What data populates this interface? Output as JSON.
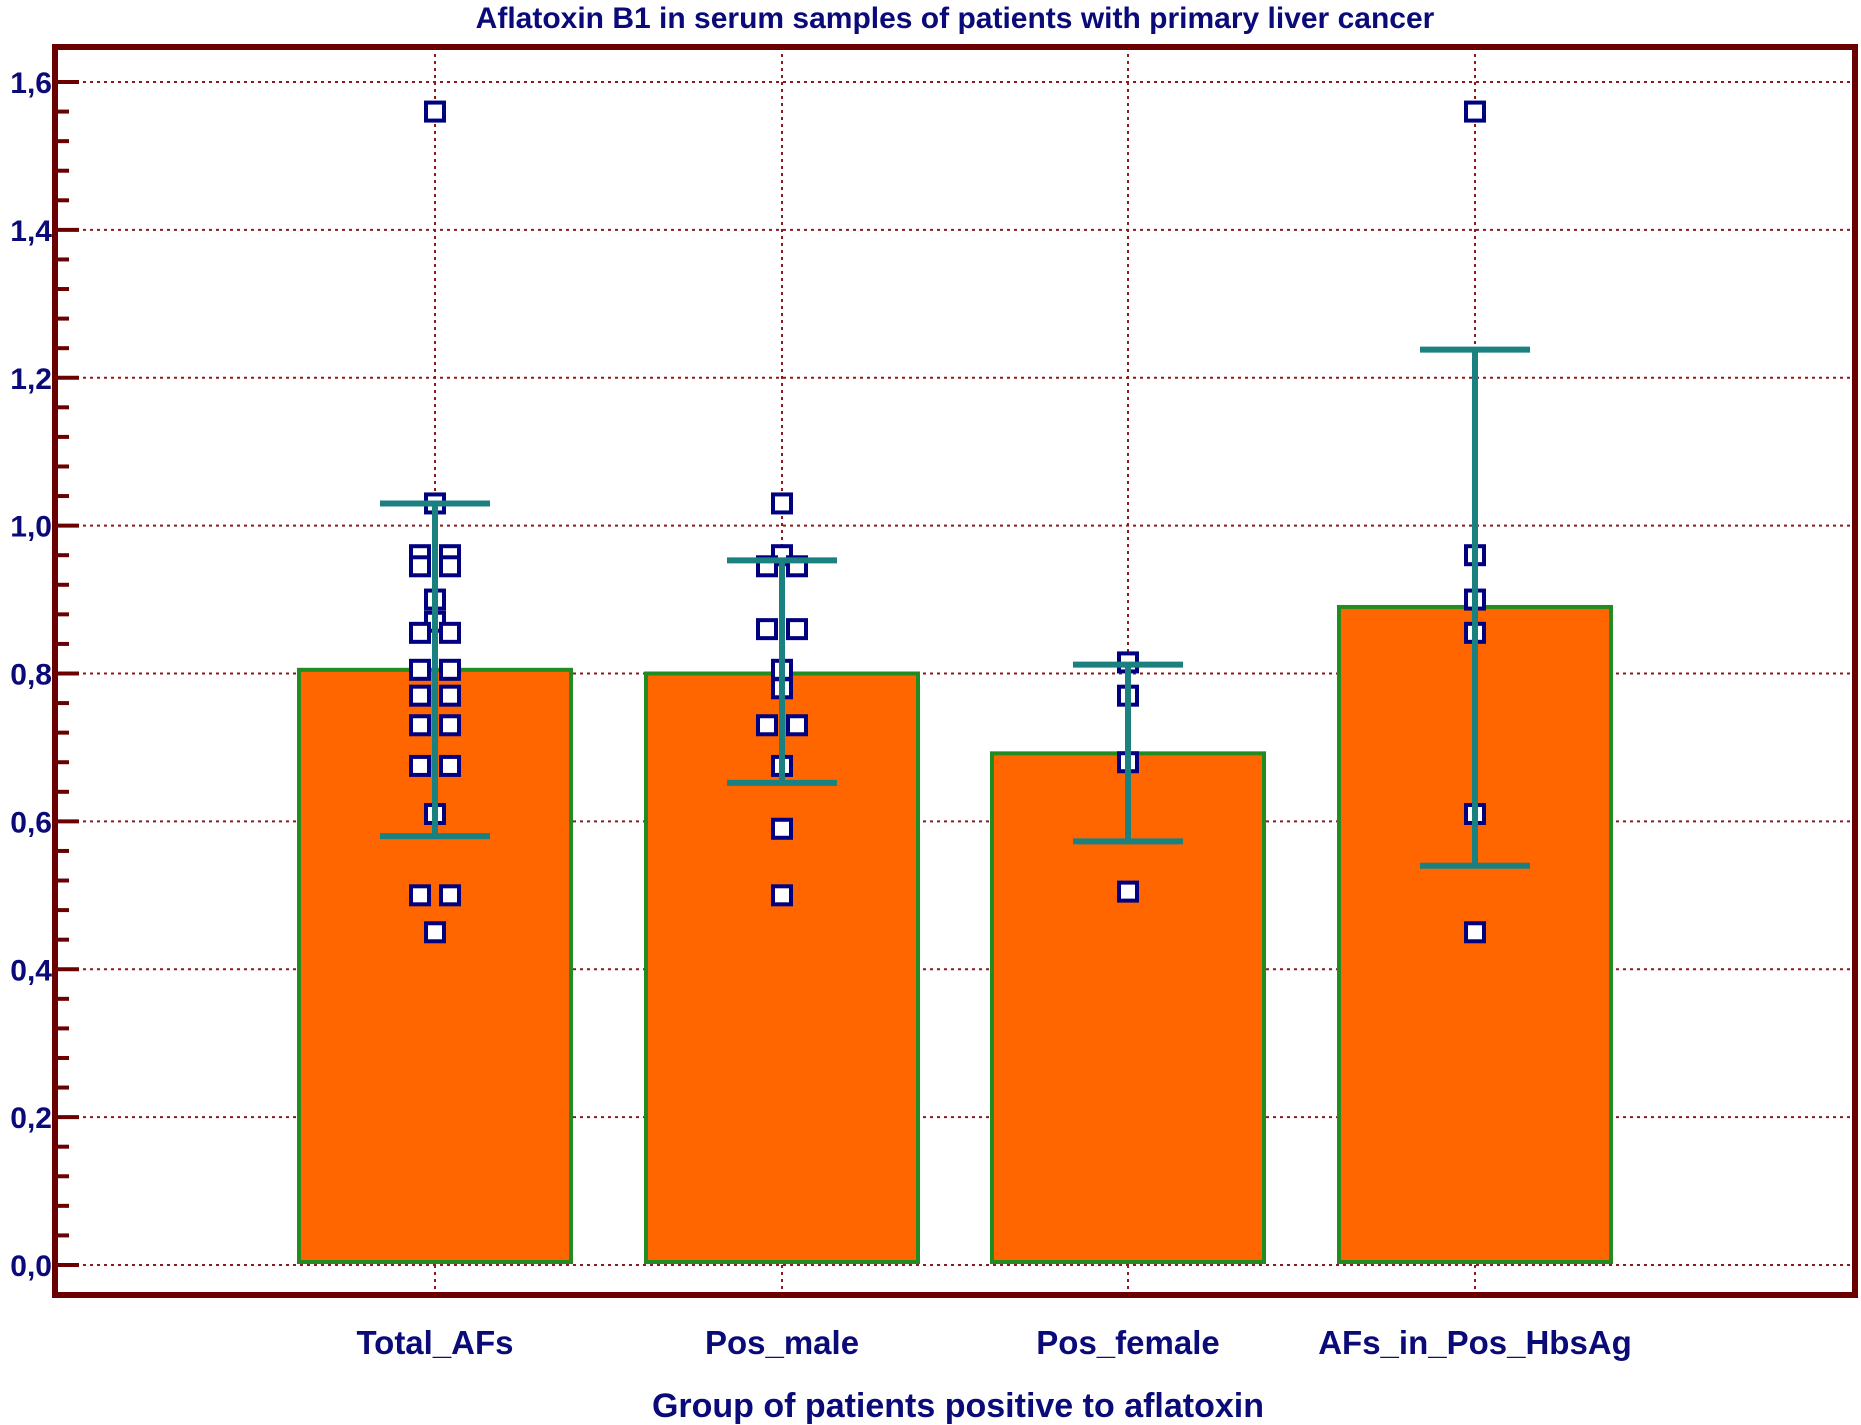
{
  "chart_data": {
    "type": "bar",
    "title": "Aflatoxin B1  in serum samples of patients with primary liver cancer",
    "xlabel": "Group of patients positive to aflatoxin",
    "ylabel": "",
    "ylim": [
      0,
      1.6
    ],
    "yticks": [
      "0,0",
      "0,2",
      "0,4",
      "0,6",
      "0,8",
      "1,0",
      "1,2",
      "1,4",
      "1,6"
    ],
    "ytick_values": [
      0,
      0.2,
      0.4,
      0.6,
      0.8,
      1.0,
      1.2,
      1.4,
      1.6
    ],
    "grid": true,
    "categories": [
      "Total_AFs",
      "Pos_male",
      "Pos_female",
      "AFs_in_Pos_HbsAg"
    ],
    "values": [
      0.805,
      0.8,
      0.692,
      0.89
    ],
    "error_bars": [
      {
        "low": 0.58,
        "high": 1.03
      },
      {
        "low": 0.652,
        "high": 0.953
      },
      {
        "low": 0.573,
        "high": 0.812
      },
      {
        "low": 0.54,
        "high": 1.238
      }
    ],
    "points": [
      [
        1.56,
        1.03,
        0.96,
        0.96,
        0.945,
        0.945,
        0.9,
        0.87,
        0.855,
        0.855,
        0.805,
        0.805,
        0.77,
        0.77,
        0.73,
        0.73,
        0.675,
        0.675,
        0.61,
        0.5,
        0.5,
        0.45
      ],
      [
        1.03,
        0.96,
        0.945,
        0.945,
        0.86,
        0.86,
        0.805,
        0.78,
        0.73,
        0.73,
        0.675,
        0.59,
        0.5
      ],
      [
        0.815,
        0.77,
        0.68,
        0.505
      ],
      [
        1.56,
        0.96,
        0.9,
        0.855,
        0.61,
        0.45
      ]
    ],
    "colors": {
      "bar_fill": "#ff6600",
      "bar_edge": "#228b22",
      "error_bar": "#1a8080",
      "point": "#000080",
      "frame": "#6b0000",
      "grid": "#8b1a1a",
      "text": "#0a0a78"
    }
  }
}
